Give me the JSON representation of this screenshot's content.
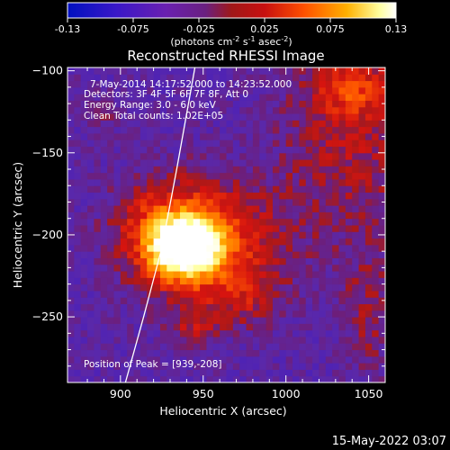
{
  "colorbar": {
    "ticks": [
      "-0.13",
      "-0.075",
      "-0.025",
      "0.025",
      "0.075",
      "0.13"
    ],
    "unit_parts": {
      "pre": "(photons cm",
      "sup1": "-2",
      "mid": " s",
      "sup2": "-1",
      "mid2": " asec",
      "sup3": "-2",
      "post": ")"
    }
  },
  "annotations": [
    "7-May-2014 14:17:52.000 to 14:23:52.000",
    "Detectors: 3F 4F 5F 6F 7F 8F, Att 0",
    "Energy Range: 3.0 - 6.0 keV",
    "Clean    Total counts: 1.02E+05"
  ],
  "peak_text": "Position of Peak = [939,-208]",
  "footer_date": "15-May-2022 03:07",
  "colors": {
    "background": "#000000",
    "low": "#5a2aa5",
    "mid": "#c8221a",
    "high": "#ffffe0"
  },
  "chart_data": {
    "type": "heatmap",
    "title": "Reconstructed RHESSI Image",
    "xlabel": "Heliocentric X (arcsec)",
    "ylabel": "Heliocentric Y (arcsec)",
    "xlim": [
      868,
      1060
    ],
    "ylim": [
      -290,
      -98
    ],
    "xticks": [
      900,
      950,
      1000,
      1050
    ],
    "yticks": [
      -100,
      -150,
      -200,
      -250
    ],
    "color_range": [
      -0.13,
      0.13
    ],
    "colormap": "blue-purple-red-yellow-white",
    "peak": {
      "x": 939,
      "y": -208
    },
    "limb_curve": [
      [
        903,
        -290
      ],
      [
        914,
        -250
      ],
      [
        925,
        -208
      ],
      [
        934,
        -160
      ],
      [
        942,
        -115
      ],
      [
        945,
        -98
      ]
    ],
    "grid": false
  }
}
